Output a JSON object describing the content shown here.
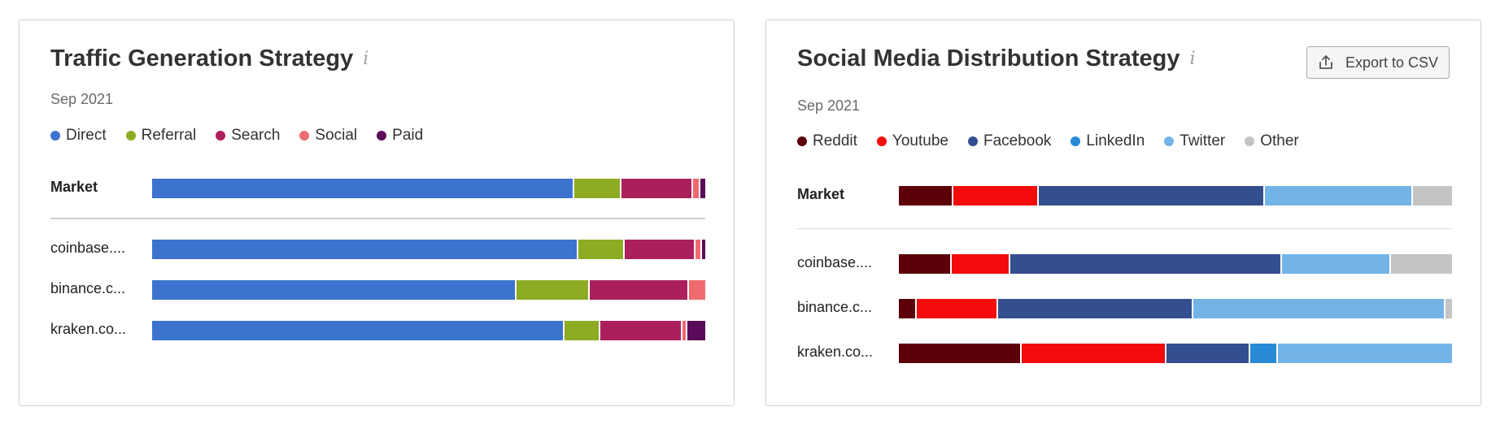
{
  "colors": {
    "direct": "#3b73cf",
    "referral": "#8eab24",
    "search": "#ab1f5c",
    "social": "#ef6b70",
    "paid": "#5a0b5a",
    "reddit": "#5c0009",
    "youtube": "#f50b0b",
    "facebook": "#334f8f",
    "linkedin": "#288ad6",
    "twitter": "#73b4e8",
    "other": "#c4c4c4"
  },
  "left": {
    "title": "Traffic Generation Strategy",
    "info_icon": "info-icon",
    "date": "Sep 2021"
  },
  "right": {
    "title": "Social Media Distribution Strategy",
    "info_icon": "info-icon",
    "date": "Sep 2021",
    "export_label": "Export to CSV",
    "export_icon": "export-upload-icon"
  },
  "chart_data": [
    {
      "type": "bar",
      "stacked": true,
      "orientation": "horizontal",
      "title": "Traffic Generation Strategy",
      "subtitle": "Sep 2021",
      "legend_position": "top",
      "grid": false,
      "xlim": [
        0,
        100
      ],
      "legend": [
        {
          "name": "Direct",
          "color": "#3b73cf"
        },
        {
          "name": "Referral",
          "color": "#8eab24"
        },
        {
          "name": "Search",
          "color": "#ab1f5c"
        },
        {
          "name": "Social",
          "color": "#ef6b70"
        },
        {
          "name": "Paid",
          "color": "#5a0b5a"
        }
      ],
      "market": {
        "label": "Market",
        "values": [
          76.3,
          8.6,
          12.9,
          1.3,
          0.9
        ]
      },
      "rows": [
        {
          "label": "coinbase....",
          "values": [
            77.0,
            8.4,
            12.8,
            1.2,
            0.6
          ]
        },
        {
          "label": "binance.c...",
          "values": [
            65.9,
            13.2,
            17.9,
            3.0,
            0.0
          ]
        },
        {
          "label": "kraken.co...",
          "values": [
            74.5,
            6.6,
            14.8,
            0.8,
            3.3
          ]
        }
      ]
    },
    {
      "type": "bar",
      "stacked": true,
      "orientation": "horizontal",
      "title": "Social Media Distribution Strategy",
      "subtitle": "Sep 2021",
      "legend_position": "top",
      "grid": false,
      "xlim": [
        0,
        100
      ],
      "legend": [
        {
          "name": "Reddit",
          "color": "#5c0009"
        },
        {
          "name": "Youtube",
          "color": "#f50b0b"
        },
        {
          "name": "Facebook",
          "color": "#334f8f"
        },
        {
          "name": "LinkedIn",
          "color": "#288ad6"
        },
        {
          "name": "Twitter",
          "color": "#73b4e8"
        },
        {
          "name": "Other",
          "color": "#c4c4c4"
        }
      ],
      "market": {
        "label": "Market",
        "values": [
          9.8,
          15.5,
          40.9,
          0.0,
          26.7,
          7.1
        ]
      },
      "rows": [
        {
          "label": "coinbase....",
          "values": [
            9.5,
            10.6,
            49.1,
            0.0,
            19.8,
            11.0
          ]
        },
        {
          "label": "binance.c...",
          "values": [
            3.2,
            14.7,
            35.4,
            0.0,
            45.5,
            1.2
          ]
        },
        {
          "label": "kraken.co...",
          "values": [
            22.2,
            26.2,
            15.1,
            5.0,
            31.5,
            0.0
          ]
        }
      ]
    }
  ]
}
